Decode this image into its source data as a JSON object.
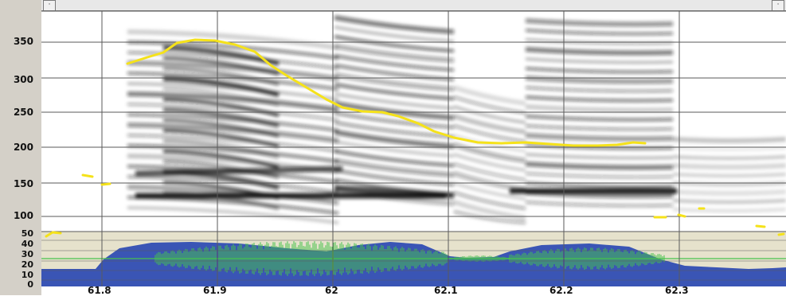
{
  "spectrogram": {
    "y_ticks": [
      "350",
      "300",
      "250",
      "200",
      "150",
      "100"
    ],
    "pitch_track_color": "#f5e21a"
  },
  "energy_panel": {
    "y_ticks": [
      "50",
      "40",
      "30",
      "20",
      "10",
      "0"
    ],
    "fill_color": "#3a55b5",
    "waveform_color": "#47c24d",
    "background_color": "#e6e2cc"
  },
  "x_axis": {
    "ticks": [
      "61.8",
      "61.9",
      "62",
      "62.1",
      "62.2",
      "62.3"
    ]
  },
  "top_bar": {
    "left_button": "·",
    "right_button": "·"
  }
}
